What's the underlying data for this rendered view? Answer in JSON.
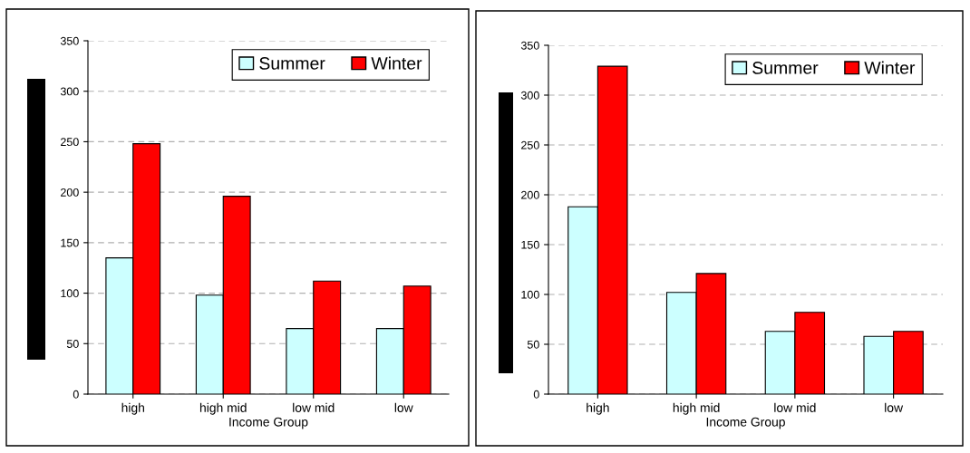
{
  "chart_data": [
    {
      "type": "bar",
      "categories": [
        "high",
        "high mid",
        "low mid",
        "low"
      ],
      "xlabel": "Income Group",
      "ylim": [
        0,
        350
      ],
      "yticks": [
        0,
        50,
        100,
        150,
        200,
        250,
        300,
        350
      ],
      "grid": "y",
      "legend": "top right",
      "series": [
        {
          "name": "Summer",
          "color": "#ccffff",
          "values": [
            135,
            98,
            65,
            65
          ]
        },
        {
          "name": "Winter",
          "color": "#ff0000",
          "values": [
            248,
            196,
            112,
            107
          ]
        }
      ]
    },
    {
      "type": "bar",
      "categories": [
        "high",
        "high mid",
        "low mid",
        "low"
      ],
      "xlabel": "Income Group",
      "ylim": [
        0,
        350
      ],
      "yticks": [
        0,
        50,
        100,
        150,
        200,
        250,
        300,
        350
      ],
      "grid": "y",
      "legend": "top right",
      "series": [
        {
          "name": "Summer",
          "color": "#ccffff",
          "values": [
            188,
            102,
            63,
            58
          ]
        },
        {
          "name": "Winter",
          "color": "#ff0000",
          "values": [
            329,
            121,
            82,
            63
          ]
        }
      ]
    }
  ]
}
